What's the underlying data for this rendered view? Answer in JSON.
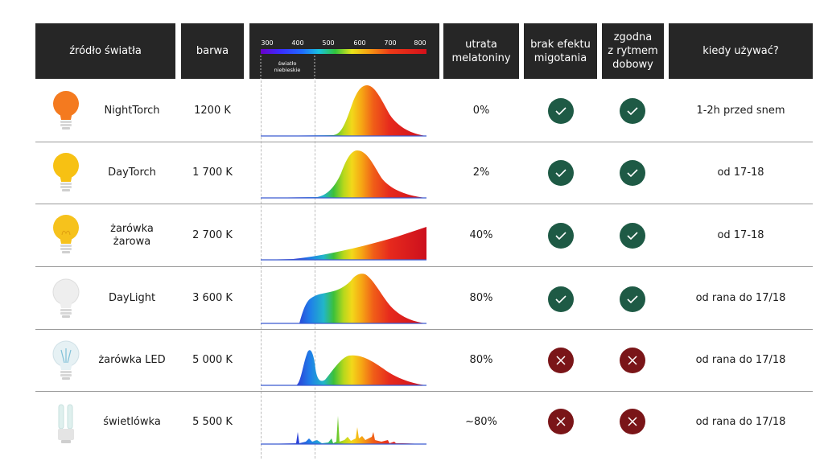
{
  "headers": {
    "source": "źródło światła",
    "color": "barwa",
    "melatonin": "utrata\nmelatoniny",
    "flicker": "brak efektu\nmigotania",
    "circadian": "zgodna\nz rytmem\ndobowy",
    "when": "kiedy używać?"
  },
  "spectrum_axis": {
    "ticks": [
      "300",
      "400",
      "500",
      "600",
      "700",
      "800"
    ],
    "blue_light_label": "światło\nniebieskie"
  },
  "rows": [
    {
      "name": "NightTorch",
      "temp": "1200 K",
      "melatonin": "0%",
      "flicker_ok": true,
      "circadian_ok": true,
      "when": "1-2h przed snem",
      "bulb_color": "#f47a1f",
      "spectrum": "nighttorch"
    },
    {
      "name": "DayTorch",
      "temp": "1 700 K",
      "melatonin": "2%",
      "flicker_ok": true,
      "circadian_ok": true,
      "when": "od 17-18",
      "bulb_color": "#f7c113",
      "spectrum": "daytorch"
    },
    {
      "name": "żarówka\nżarowa",
      "temp": "2 700 K",
      "melatonin": "40%",
      "flicker_ok": true,
      "circadian_ok": true,
      "when": "od 17-18",
      "bulb_color": "#f6c21c",
      "spectrum": "incandescent"
    },
    {
      "name": "DayLight",
      "temp": "3 600 K",
      "melatonin": "80%",
      "flicker_ok": true,
      "circadian_ok": true,
      "when": "od rana do 17/18",
      "bulb_color": "#eeeeee",
      "spectrum": "daylight"
    },
    {
      "name": "żarówka LED",
      "temp": "5 000 K",
      "melatonin": "80%",
      "flicker_ok": false,
      "circadian_ok": false,
      "when": "od rana do 17/18",
      "bulb_color": "#dcebf0",
      "spectrum": "led"
    },
    {
      "name": "świetlówka",
      "temp": "5 500 K",
      "melatonin": "~80%",
      "flicker_ok": false,
      "circadian_ok": false,
      "when": "od rana do 17/18",
      "bulb_color": "#dff0ee",
      "spectrum": "fluorescent"
    }
  ],
  "colors": {
    "header_bg": "#262626",
    "check_bg": "#1e5a45",
    "cross_bg": "#7a1518",
    "separator": "#9a9a9a"
  },
  "icons": {
    "yes": "check-icon",
    "no": "cross-icon"
  }
}
